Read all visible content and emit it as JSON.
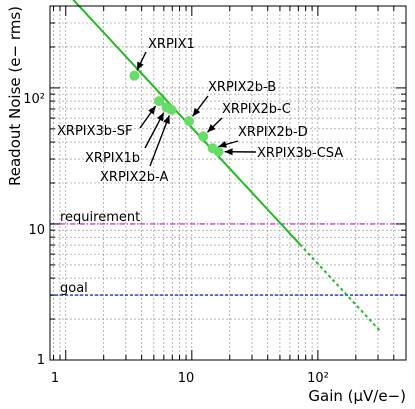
{
  "chart_data": {
    "type": "scatter",
    "title": "",
    "xlabel": "Gain (μV/e−)",
    "ylabel": "Readout Noise (e− rms)",
    "xscale": "log",
    "yscale": "log",
    "xlim": [
      0.75,
      500
    ],
    "ylim": [
      1,
      400
    ],
    "grid": true,
    "x_tick_labels": [
      "1",
      "10",
      "10²"
    ],
    "y_tick_labels": [
      "1",
      "10",
      "10²"
    ],
    "fit_line": {
      "slope_loglog": -1,
      "coefficient": 510,
      "solid_x_range": [
        0.75,
        72
      ],
      "dashed_x_range": [
        72,
        310
      ],
      "color": "#22bb22"
    },
    "points": [
      {
        "name": "XRPIX1",
        "x": 3.5,
        "y": 123
      },
      {
        "name": "XRPIX3b-SF",
        "x": 5.5,
        "y": 80
      },
      {
        "name": "XRPIX1b",
        "x": 6.3,
        "y": 72
      },
      {
        "name": "XRPIX2b-A",
        "x": 6.9,
        "y": 69
      },
      {
        "name": "XRPIX2b-B",
        "x": 9.5,
        "y": 57
      },
      {
        "name": "XRPIX2b-C",
        "x": 12.3,
        "y": 44
      },
      {
        "name": "XRPIX2b-D",
        "x": 14.6,
        "y": 36
      },
      {
        "name": "XRPIX3b-CSA",
        "x": 16.3,
        "y": 34
      }
    ],
    "point_color": "#66dd66",
    "reference_lines": [
      {
        "name": "requirement",
        "y": 10,
        "color": "#dd33dd"
      },
      {
        "name": "goal",
        "y": 3,
        "color": "#1133cc"
      }
    ]
  }
}
